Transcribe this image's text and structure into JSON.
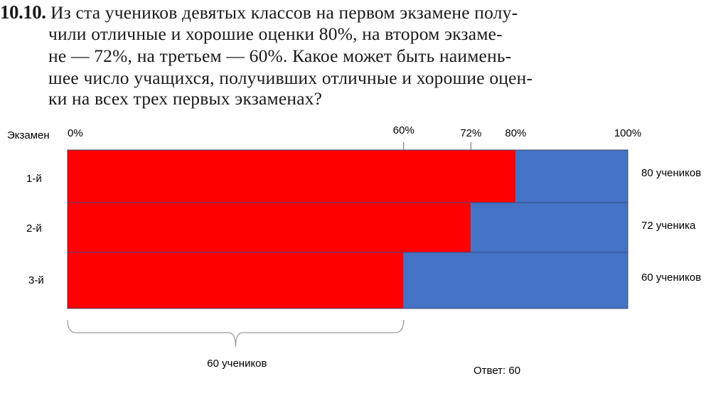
{
  "problem": {
    "number": "10.10.",
    "lines": [
      "Из ста учеников девятых классов на первом экзамене полу-",
      "чили отличные и хорошие оценки 80%, на втором экзаме-",
      "не — 72%, на третьем — 60%. Какое может быть наимень-",
      "шее число учащихся, получивших отличные и хорошие оцен-",
      "ки на всех трех первых экзаменах?"
    ]
  },
  "chart_data": {
    "type": "bar",
    "orientation": "horizontal",
    "stacked": true,
    "row_header": "Экзамен",
    "categories": [
      "1-й",
      "2-й",
      "3-й"
    ],
    "series": [
      {
        "values": [
          80,
          72,
          60
        ],
        "color": "#ff0000"
      },
      {
        "values": [
          20,
          28,
          40
        ],
        "color": "#4472c4"
      }
    ],
    "xlim": [
      0,
      100
    ],
    "top_ticks": [
      {
        "label": "0%",
        "value": 0,
        "marker": false
      },
      {
        "label": "60%",
        "value": 60,
        "marker": true
      },
      {
        "label": "72%",
        "value": 72,
        "marker": true
      },
      {
        "label": "80%",
        "value": 80,
        "marker": false
      },
      {
        "label": "100%",
        "value": 100,
        "marker": false
      }
    ],
    "row_annotations": [
      "80 учеников",
      "72 ученика",
      "60 учеников"
    ],
    "brace": {
      "from": 0,
      "to": 60,
      "label": "60 учеников"
    },
    "answer": "Ответ: 60"
  }
}
